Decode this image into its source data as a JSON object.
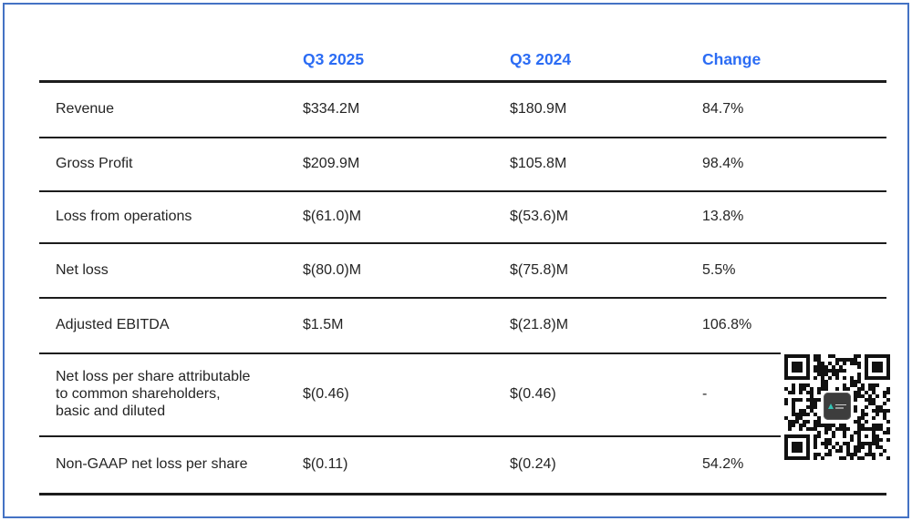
{
  "meta": {
    "accent_blue": "#2b6cf4",
    "frame_border_blue": "#4472c4",
    "rule_color": "#1c1c1c",
    "text_color": "#242424"
  },
  "chart_data": {
    "type": "table",
    "columns": [
      "",
      "Q3 2025",
      "Q3 2024",
      "Change"
    ],
    "rows": [
      {
        "metric": "Revenue",
        "values": [
          "$334.2M",
          "$180.9M",
          "84.7%"
        ]
      },
      {
        "metric": "Gross Profit",
        "values": [
          "$209.9M",
          "$105.8M",
          "98.4%"
        ]
      },
      {
        "metric": "Loss from operations",
        "values": [
          "$(61.0)M",
          "$(53.6)M",
          "13.8%"
        ]
      },
      {
        "metric": "Net loss",
        "values": [
          "$(80.0)M",
          "$(75.8)M",
          "5.5%"
        ]
      },
      {
        "metric": "Adjusted EBITDA",
        "values": [
          "$1.5M",
          "$(21.8)M",
          "106.8%"
        ]
      },
      {
        "metric": "Net loss per share attributable to common shareholders, basic and diluted",
        "values": [
          "$(0.46)",
          "$(0.46)",
          "-"
        ]
      },
      {
        "metric": "Non-GAAP net loss per share",
        "values": [
          "$(0.11)",
          "$(0.24)",
          "54.2%"
        ]
      }
    ],
    "layout": {
      "header_text_style": "bold blue",
      "grid": "horizontal rules only",
      "qr_code_position": "bottom-right overlay"
    },
    "icons": {
      "qr_code": "qr-code",
      "qr_center_logo": "company-logo"
    }
  }
}
